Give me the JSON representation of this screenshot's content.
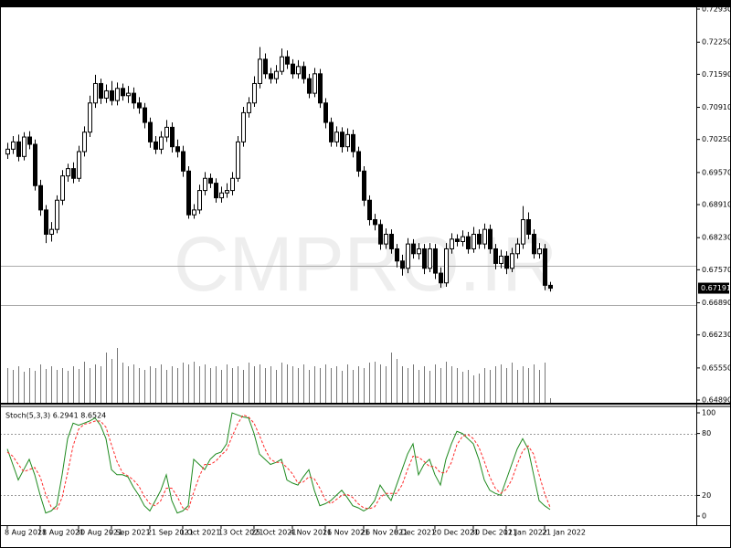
{
  "chart_data": [
    {
      "type": "candlestick",
      "watermark": "CMPRO.IR",
      "open": [
        0.6995,
        0.7005,
        0.702,
        0.699,
        0.703,
        0.7015,
        0.693,
        0.688,
        0.683,
        0.684,
        0.69,
        0.695,
        0.6965,
        0.6945,
        0.7,
        0.704,
        0.71,
        0.714,
        0.711,
        0.7125,
        0.7105,
        0.713,
        0.7115,
        0.712,
        0.71,
        0.709,
        0.706,
        0.702,
        0.7005,
        0.703,
        0.705,
        0.701,
        0.7,
        0.696,
        0.687,
        0.688,
        0.692,
        0.6945,
        0.6935,
        0.6905,
        0.6915,
        0.692,
        0.6945,
        0.702,
        0.708,
        0.71,
        0.714,
        0.719,
        0.716,
        0.715,
        0.7165,
        0.7195,
        0.718,
        0.716,
        0.7175,
        0.715,
        0.712,
        0.716,
        0.71,
        0.706,
        0.702,
        0.704,
        0.701,
        0.7035,
        0.7,
        0.696,
        0.69,
        0.686,
        0.685,
        0.681,
        0.683,
        0.68,
        0.6775,
        0.676,
        0.681,
        0.679,
        0.68,
        0.676,
        0.68,
        0.675,
        0.673,
        0.68,
        0.682,
        0.6815,
        0.6825,
        0.68,
        0.683,
        0.681,
        0.684,
        0.68,
        0.677,
        0.6785,
        0.676,
        0.679,
        0.681,
        0.686,
        0.683,
        0.679,
        0.68,
        0.6725
      ],
      "high": [
        0.7018,
        0.7032,
        0.7035,
        0.704,
        0.7042,
        0.7025,
        0.6942,
        0.689,
        0.6855,
        0.691,
        0.6962,
        0.6975,
        0.6978,
        0.7012,
        0.7052,
        0.7115,
        0.7158,
        0.715,
        0.7138,
        0.7145,
        0.7142,
        0.714,
        0.7135,
        0.7132,
        0.7112,
        0.71,
        0.707,
        0.7032,
        0.7042,
        0.7065,
        0.706,
        0.7025,
        0.7012,
        0.697,
        0.6892,
        0.6932,
        0.6958,
        0.6955,
        0.6945,
        0.6928,
        0.6935,
        0.6958,
        0.7032,
        0.7092,
        0.7112,
        0.7155,
        0.7215,
        0.7202,
        0.7172,
        0.7178,
        0.7212,
        0.7208,
        0.719,
        0.7188,
        0.7185,
        0.716,
        0.7172,
        0.717,
        0.711,
        0.707,
        0.7052,
        0.705,
        0.7048,
        0.7045,
        0.701,
        0.697,
        0.691,
        0.6872,
        0.686,
        0.6842,
        0.684,
        0.681,
        0.6788,
        0.6822,
        0.682,
        0.6812,
        0.681,
        0.6812,
        0.681,
        0.6762,
        0.6812,
        0.6832,
        0.683,
        0.6838,
        0.6835,
        0.6845,
        0.684,
        0.6852,
        0.685,
        0.681,
        0.6798,
        0.6795,
        0.6802,
        0.6822,
        0.6888,
        0.6875,
        0.684,
        0.6812,
        0.681,
        0.6732
      ],
      "low": [
        0.6985,
        0.6995,
        0.698,
        0.6982,
        0.7005,
        0.692,
        0.6868,
        0.6812,
        0.6815,
        0.6832,
        0.689,
        0.6938,
        0.6935,
        0.6938,
        0.699,
        0.703,
        0.709,
        0.7098,
        0.71,
        0.7095,
        0.7095,
        0.7105,
        0.71,
        0.7088,
        0.7078,
        0.7048,
        0.7008,
        0.6995,
        0.6995,
        0.702,
        0.6998,
        0.6988,
        0.6948,
        0.6862,
        0.6862,
        0.6872,
        0.691,
        0.6925,
        0.6895,
        0.6895,
        0.6905,
        0.691,
        0.6938,
        0.701,
        0.707,
        0.7092,
        0.713,
        0.715,
        0.714,
        0.714,
        0.7158,
        0.717,
        0.715,
        0.715,
        0.714,
        0.711,
        0.7112,
        0.709,
        0.7048,
        0.701,
        0.701,
        0.6998,
        0.7,
        0.6988,
        0.6948,
        0.6888,
        0.6848,
        0.6838,
        0.6798,
        0.68,
        0.679,
        0.6762,
        0.6745,
        0.675,
        0.678,
        0.6778,
        0.6748,
        0.6752,
        0.6738,
        0.672,
        0.6722,
        0.679,
        0.6805,
        0.6805,
        0.679,
        0.6792,
        0.68,
        0.68,
        0.679,
        0.6758,
        0.676,
        0.6748,
        0.6752,
        0.678,
        0.68,
        0.682,
        0.678,
        0.678,
        0.6715,
        0.6712
      ],
      "close": [
        0.7005,
        0.702,
        0.699,
        0.703,
        0.7015,
        0.693,
        0.688,
        0.683,
        0.684,
        0.69,
        0.695,
        0.6965,
        0.6945,
        0.7,
        0.704,
        0.71,
        0.714,
        0.711,
        0.7125,
        0.7105,
        0.713,
        0.7115,
        0.712,
        0.71,
        0.709,
        0.706,
        0.702,
        0.7005,
        0.703,
        0.705,
        0.701,
        0.7,
        0.696,
        0.687,
        0.688,
        0.692,
        0.6945,
        0.6935,
        0.6905,
        0.6915,
        0.692,
        0.6945,
        0.702,
        0.708,
        0.71,
        0.714,
        0.719,
        0.716,
        0.715,
        0.7165,
        0.7195,
        0.718,
        0.716,
        0.7175,
        0.715,
        0.712,
        0.716,
        0.71,
        0.706,
        0.702,
        0.704,
        0.701,
        0.7035,
        0.7,
        0.696,
        0.69,
        0.686,
        0.685,
        0.681,
        0.683,
        0.68,
        0.6775,
        0.676,
        0.681,
        0.679,
        0.68,
        0.676,
        0.68,
        0.675,
        0.673,
        0.68,
        0.682,
        0.6815,
        0.6825,
        0.68,
        0.683,
        0.681,
        0.684,
        0.68,
        0.677,
        0.6785,
        0.676,
        0.679,
        0.681,
        0.686,
        0.683,
        0.679,
        0.68,
        0.6725,
        0.67191
      ],
      "volume": [
        38,
        36,
        40,
        34,
        38,
        35,
        42,
        37,
        40,
        36,
        38,
        35,
        40,
        37,
        45,
        38,
        42,
        40,
        55,
        48,
        60,
        44,
        40,
        42,
        38,
        36,
        40,
        38,
        42,
        36,
        40,
        38,
        44,
        42,
        45,
        40,
        42,
        38,
        40,
        36,
        42,
        38,
        40,
        36,
        44,
        40,
        42,
        38,
        40,
        36,
        44,
        42,
        40,
        38,
        42,
        36,
        40,
        38,
        42,
        38,
        40,
        35,
        42,
        36,
        40,
        38,
        44,
        45,
        42,
        40,
        55,
        48,
        40,
        38,
        42,
        36,
        40,
        35,
        42,
        38,
        45,
        40,
        38,
        34,
        36,
        30,
        32,
        38,
        36,
        40,
        42,
        38,
        44,
        36,
        40,
        38,
        42,
        36,
        44,
        5
      ],
      "volume_lim": [
        0,
        433
      ],
      "levels": [
        0.6765,
        0.6684
      ],
      "xlim": [
        -1.33,
        125.67
      ],
      "ylim": [
        0.64834,
        0.72968
      ],
      "yticks": [
        {
          "value": 0.7293,
          "label": "0.72930"
        },
        {
          "value": 0.7225,
          "label": "0.72250"
        },
        {
          "value": 0.7159,
          "label": "0.71590"
        },
        {
          "value": 0.7091,
          "label": "0.70910"
        },
        {
          "value": 0.7025,
          "label": "0.70250"
        },
        {
          "value": 0.6957,
          "label": "0.69570"
        },
        {
          "value": 0.6891,
          "label": "0.68910"
        },
        {
          "value": 0.6823,
          "label": "0.68230"
        },
        {
          "value": 0.6757,
          "label": "0.67570"
        },
        {
          "value": 0.6689,
          "label": "0.66890"
        },
        {
          "value": 0.6623,
          "label": "0.66230"
        },
        {
          "value": 0.6555,
          "label": "0.65550"
        },
        {
          "value": 0.6489,
          "label": "0.64890"
        }
      ]
    },
    {
      "type": "line",
      "title": "Stoch(5,3,3) 6.2941 8.6524",
      "series": [
        {
          "color": "#1f8a1f",
          "style": "solid",
          "values": [
            65,
            50,
            35,
            45,
            55,
            40,
            20,
            3,
            5,
            10,
            40,
            75,
            90,
            88,
            90,
            92,
            95,
            88,
            75,
            45,
            40,
            40,
            38,
            28,
            20,
            10,
            5,
            15,
            25,
            40,
            15,
            3,
            5,
            10,
            55,
            50,
            45,
            55,
            60,
            62,
            70,
            100,
            98,
            96,
            95,
            80,
            60,
            55,
            50,
            52,
            55,
            35,
            32,
            30,
            38,
            45,
            25,
            10,
            12,
            15,
            20,
            25,
            18,
            10,
            8,
            5,
            8,
            15,
            30,
            22,
            15,
            30,
            45,
            60,
            70,
            40,
            50,
            55,
            40,
            30,
            55,
            70,
            82,
            80,
            75,
            70,
            55,
            35,
            25,
            22,
            20,
            35,
            50,
            65,
            75,
            65,
            40,
            15,
            10,
            6.2941
          ]
        },
        {
          "color": "#ff2a2a",
          "style": "dashed",
          "values": [
            62,
            58,
            50,
            43,
            45,
            47,
            38,
            21,
            9,
            6,
            18,
            42,
            68,
            84,
            89,
            90,
            92,
            92,
            86,
            69,
            53,
            42,
            39,
            35,
            29,
            19,
            12,
            10,
            15,
            27,
            27,
            19,
            8,
            6,
            23,
            38,
            50,
            50,
            53,
            59,
            64,
            77,
            89,
            98,
            96,
            90,
            78,
            65,
            55,
            52,
            52,
            47,
            41,
            32,
            33,
            38,
            36,
            27,
            16,
            12,
            16,
            20,
            21,
            18,
            12,
            8,
            7,
            9,
            18,
            22,
            22,
            22,
            30,
            45,
            58,
            57,
            53,
            48,
            48,
            42,
            42,
            52,
            69,
            77,
            79,
            75,
            67,
            53,
            38,
            27,
            22,
            26,
            35,
            50,
            63,
            68,
            60,
            40,
            22,
            8.6524
          ]
        }
      ],
      "levels": [
        20,
        80
      ],
      "xlim": [
        -1.33,
        125.67
      ],
      "ylim": [
        -8.8,
        105.3
      ],
      "yticks": [
        0,
        20,
        80,
        100
      ],
      "xticks": [
        {
          "value": 0,
          "label": "8 Aug 2021"
        },
        {
          "value": 6,
          "label": "18 Aug 2021"
        },
        {
          "value": 13,
          "label": "30 Aug 2021"
        },
        {
          "value": 19,
          "label": "9 Sep 2021"
        },
        {
          "value": 26,
          "label": "21 Sep 2021"
        },
        {
          "value": 32,
          "label": "1 Oct 2021"
        },
        {
          "value": 39,
          "label": "13 Oct 2021"
        },
        {
          "value": 45,
          "label": "25 Oct 2021"
        },
        {
          "value": 52,
          "label": "4 Nov 2021"
        },
        {
          "value": 58,
          "label": "16 Nov 2021"
        },
        {
          "value": 65,
          "label": "26 Nov 2021"
        },
        {
          "value": 71,
          "label": "8 Dec 2021"
        },
        {
          "value": 78,
          "label": "20 Dec 2021"
        },
        {
          "value": 85,
          "label": "30 Dec 2021"
        },
        {
          "value": 91,
          "label": "11 Jan 2022"
        },
        {
          "value": 98,
          "label": "21 Jan 2022"
        }
      ]
    }
  ]
}
